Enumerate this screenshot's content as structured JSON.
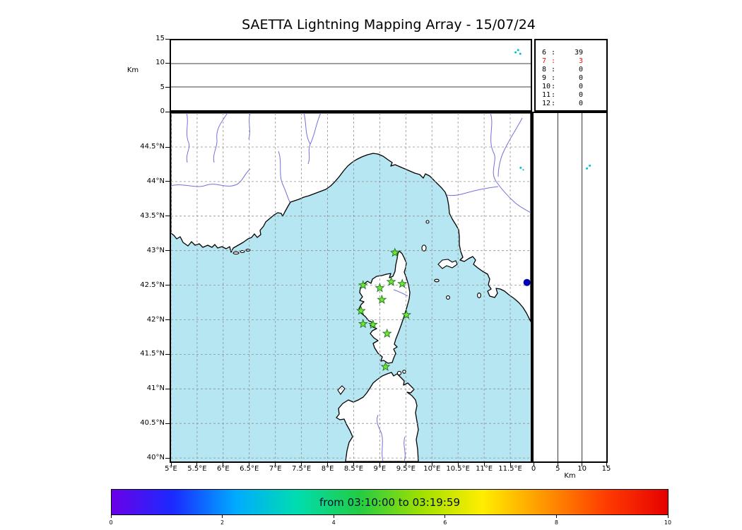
{
  "title": "SAETTA Lightning Mapping Array - 15/07/24",
  "colors": {
    "sea": "#b5e6f1",
    "land": "#ffffff",
    "coastline": "#000000",
    "river": "#7272d9",
    "grid": "#909090",
    "station_fill": "#6ee82e",
    "station_edge": "#267326",
    "event_blue": "#0000b8",
    "event_cyan": "#00c4cc",
    "stats_highlight": "#ee1111",
    "colorbar_text": "#001133",
    "colorbar_gradient": [
      "#6a00e8",
      "#1a2aff",
      "#00aaff",
      "#00ddb0",
      "#22cc44",
      "#9fe000",
      "#ffee00",
      "#ff9500",
      "#ff3c00",
      "#e60000"
    ]
  },
  "chart_data": [
    {
      "type": "scatter",
      "name": "altitude_vs_time",
      "ylabel": "Km",
      "ylim": [
        0,
        15
      ],
      "yticks": [
        0,
        5,
        10,
        15
      ],
      "gridlines_km": [
        5,
        10
      ],
      "points": [
        {
          "x_frac": 0.958,
          "alt_km": 12.4
        },
        {
          "x_frac": 0.965,
          "alt_km": 12.9
        },
        {
          "x_frac": 0.971,
          "alt_km": 12.1
        }
      ]
    },
    {
      "type": "scatter",
      "name": "plan_view_map",
      "xlim": [
        5.0,
        11.89
      ],
      "ylim": [
        39.95,
        45.0
      ],
      "lon_ticks": [
        {
          "v": 5,
          "label": "5°E"
        },
        {
          "v": 5.5,
          "label": "5.5°E"
        },
        {
          "v": 6,
          "label": "6°E"
        },
        {
          "v": 6.5,
          "label": "6.5°E"
        },
        {
          "v": 7,
          "label": "7°E"
        },
        {
          "v": 7.5,
          "label": "7.5°E"
        },
        {
          "v": 8,
          "label": "8°E"
        },
        {
          "v": 8.5,
          "label": "8.5°E"
        },
        {
          "v": 9,
          "label": "9°E"
        },
        {
          "v": 9.5,
          "label": "9.5°E"
        },
        {
          "v": 10,
          "label": "10°E"
        },
        {
          "v": 10.5,
          "label": "10.5°E"
        },
        {
          "v": 11,
          "label": "11°E"
        },
        {
          "v": 11.5,
          "label": "11.5°E"
        }
      ],
      "lat_ticks": [
        {
          "v": 44.5,
          "label": "44.5°N"
        },
        {
          "v": 44,
          "label": "44°N"
        },
        {
          "v": 43.5,
          "label": "43.5°N"
        },
        {
          "v": 43,
          "label": "43°N"
        },
        {
          "v": 42.5,
          "label": "42.5°N"
        },
        {
          "v": 42,
          "label": "42°N"
        },
        {
          "v": 41.5,
          "label": "41.5°N"
        },
        {
          "v": 41,
          "label": "41°N"
        },
        {
          "v": 40.5,
          "label": "40.5°N"
        },
        {
          "v": 40,
          "label": "40°N"
        }
      ],
      "stations": [
        [
          9.29,
          42.97
        ],
        [
          8.68,
          42.5
        ],
        [
          9.0,
          42.46
        ],
        [
          9.22,
          42.55
        ],
        [
          9.43,
          42.52
        ],
        [
          9.04,
          42.29
        ],
        [
          8.64,
          42.13
        ],
        [
          9.51,
          42.07
        ],
        [
          8.68,
          41.94
        ],
        [
          8.87,
          41.93
        ],
        [
          9.14,
          41.8
        ],
        [
          9.11,
          41.32
        ]
      ],
      "events": [
        {
          "lon": 11.82,
          "lat": 42.54,
          "color": "event_blue",
          "size": 5
        },
        {
          "lon": 11.7,
          "lat": 44.2,
          "color": "event_cyan",
          "size": 1.5
        },
        {
          "lon": 11.75,
          "lat": 44.17,
          "color": "event_cyan",
          "size": 1.1
        }
      ]
    },
    {
      "type": "scatter",
      "name": "altitude_vs_latitude",
      "xlabel": "Km",
      "xlim": [
        0,
        15
      ],
      "xticks": [
        0,
        5,
        10,
        15
      ],
      "gridlines_km": [
        5,
        10
      ],
      "points": [
        {
          "alt_km": 11.0,
          "lat": 44.19
        },
        {
          "alt_km": 11.6,
          "lat": 44.23
        }
      ]
    },
    {
      "type": "colorbar",
      "label": "from 03:10:00 to 03:19:59",
      "min": 0,
      "max": 10,
      "ticks": [
        0,
        2,
        4,
        6,
        8,
        10
      ]
    },
    {
      "type": "table",
      "name": "station_trigger_counts",
      "rows": [
        {
          "station": "6",
          "count": "39",
          "highlight": false
        },
        {
          "station": "7",
          "count": "3",
          "highlight": true
        },
        {
          "station": "8",
          "count": "0",
          "highlight": false
        },
        {
          "station": "9",
          "count": "0",
          "highlight": false
        },
        {
          "station": "10",
          "count": "0",
          "highlight": false
        },
        {
          "station": "11",
          "count": "0",
          "highlight": false
        },
        {
          "station": "12",
          "count": "0",
          "highlight": false
        }
      ]
    }
  ]
}
